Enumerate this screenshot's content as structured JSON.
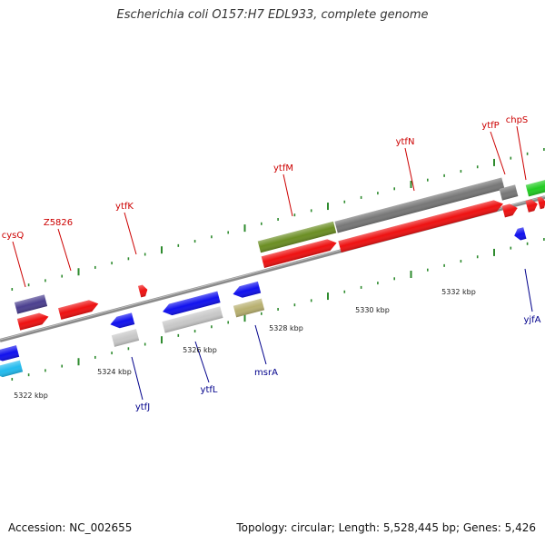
{
  "title": "Escherichia coli O157:H7 EDL933, complete genome",
  "accession": "Accession: NC_002655",
  "summary": "Topology: circular; Length: 5,528,445 bp; Genes: 5,426",
  "colors": {
    "backbone": "#8a8a8a",
    "tick": "#2e8b2e",
    "gene_label_forward": "#cc0000",
    "gene_label_reverse": "#00008b"
  },
  "scale_labels": [
    "5322 kbp",
    "5324 kbp",
    "5326 kbp",
    "5328 kbp",
    "5330 kbp",
    "5332 kbp"
  ],
  "gene_labels": [
    {
      "name": "cysQ",
      "strand": "forward"
    },
    {
      "name": "Z5826",
      "strand": "forward"
    },
    {
      "name": "ytfK",
      "strand": "forward"
    },
    {
      "name": "ytfM",
      "strand": "forward"
    },
    {
      "name": "ytfN",
      "strand": "forward"
    },
    {
      "name": "ytfP",
      "strand": "forward"
    },
    {
      "name": "chpS",
      "strand": "forward"
    },
    {
      "name": "ytfJ",
      "strand": "reverse"
    },
    {
      "name": "ytfL",
      "strand": "reverse"
    },
    {
      "name": "msrA",
      "strand": "reverse"
    },
    {
      "name": "yjfA",
      "strand": "reverse"
    }
  ]
}
